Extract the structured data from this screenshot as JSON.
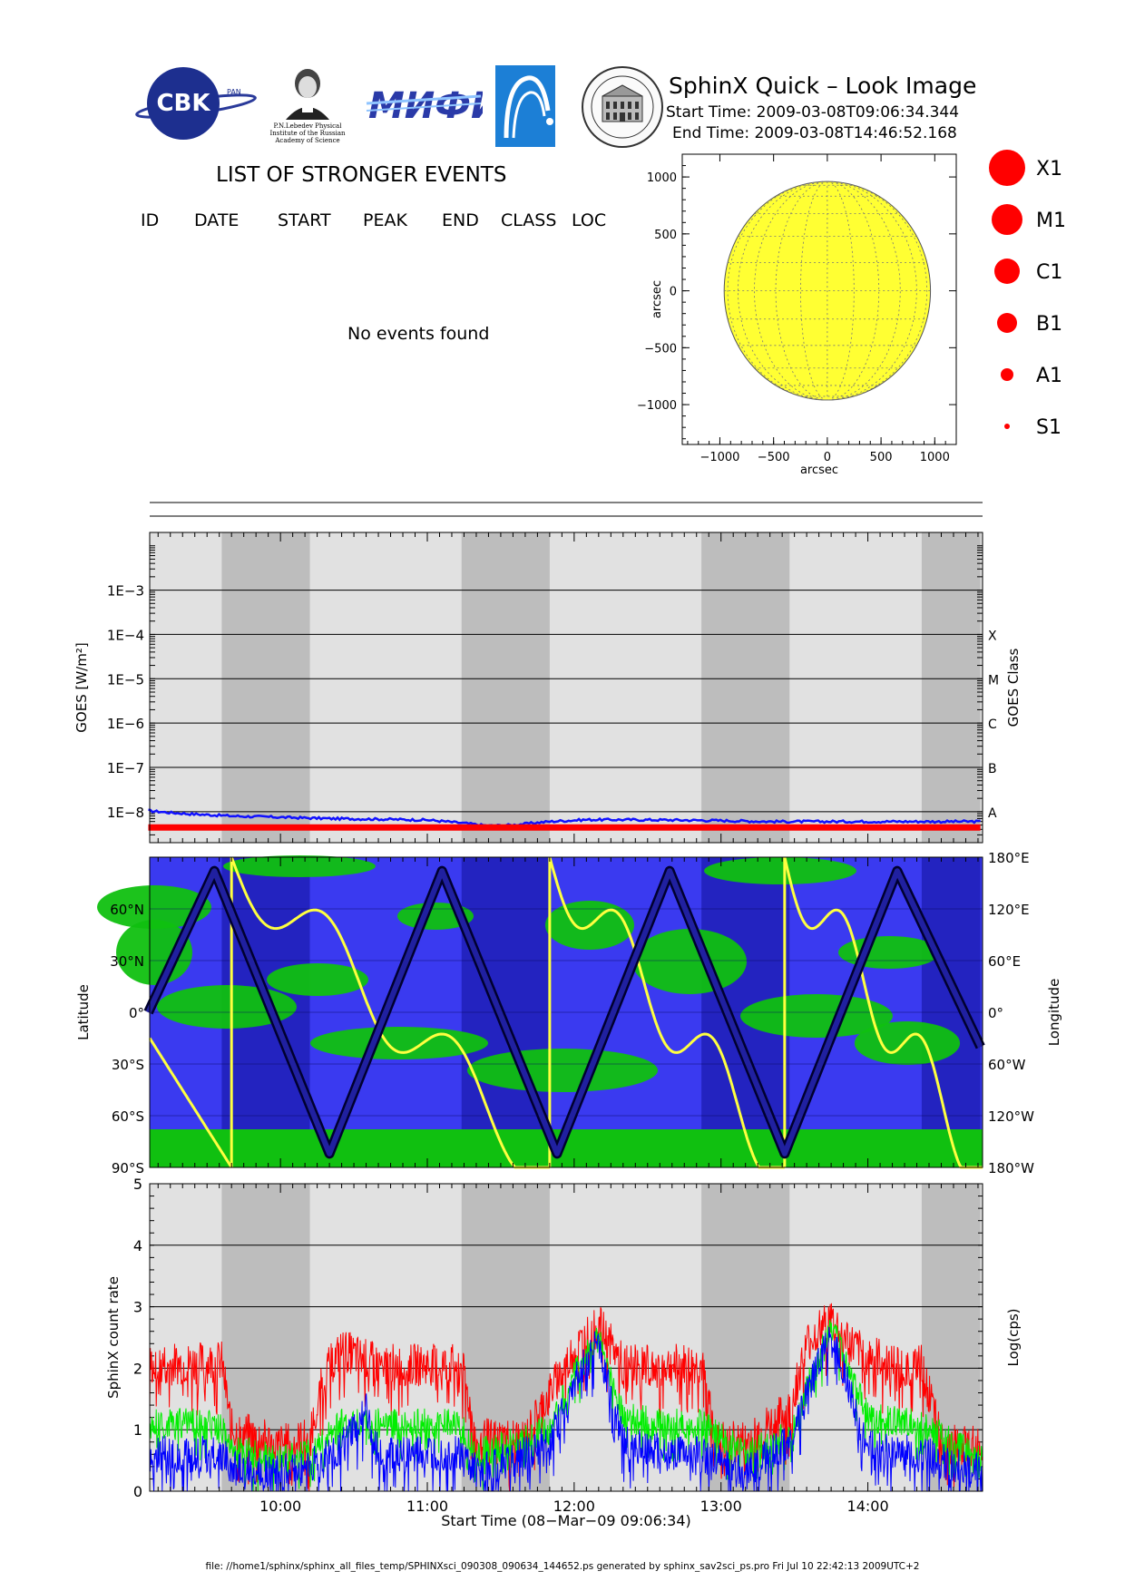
{
  "header": {
    "title": "SphinX Quick – Look Image",
    "start_time": "Start Time: 2009-03-08T09:06:34.344",
    "end_time": "End Time: 2009-03-08T14:46:52.168",
    "logos": {
      "cbk": "CBK",
      "cbk_sub": "PAN",
      "lebedev_caption": [
        "P.N.Lebedev Physical",
        "Institute of the Russian",
        "Academy of Science"
      ],
      "mifi": "МИФИ"
    }
  },
  "events": {
    "title": "LIST OF STRONGER EVENTS",
    "columns": [
      "ID",
      "DATE",
      "START",
      "PEAK",
      "END",
      "CLASS",
      "LOC"
    ],
    "empty_message": "No events found"
  },
  "legend": {
    "items": [
      {
        "label": "X1",
        "color": "#ff0000"
      },
      {
        "label": "M1",
        "color": "#ff0000"
      },
      {
        "label": "C1",
        "color": "#ff0000"
      },
      {
        "label": "B1",
        "color": "#ff0000"
      },
      {
        "label": "A1",
        "color": "#ff0000"
      },
      {
        "label": "S1",
        "color": "#ff0000"
      }
    ]
  },
  "footer": "file: //home1/sphinx/sphinx_all_files_temp/SPHINXsci_090308_090634_144652.ps generated by sphinx_sav2sci_ps.pro Fri Jul 10 22:42:13 2009UTC+2",
  "chart_data": [
    {
      "type": "scatter",
      "name": "solar-disk-map",
      "xlabel": "arcsec",
      "ylabel": "arcsec",
      "xlim": [
        -1350,
        1200
      ],
      "ylim": [
        -1350,
        1200
      ],
      "x_ticks": [
        -1000,
        -500,
        0,
        500,
        1000
      ],
      "y_ticks": [
        -1000,
        -500,
        0,
        500,
        1000
      ],
      "x_tick_labels": [
        "−1000",
        "−500",
        "0",
        "500",
        "1000"
      ],
      "y_tick_labels": [
        "−1000",
        "−500",
        "0",
        "500",
        "1000"
      ],
      "disk_radius": 960,
      "disk_color": "#ffff33",
      "events": []
    },
    {
      "type": "line",
      "name": "goes-flux",
      "ylabel": "GOES [W/m²]",
      "ylabel_right": "GOES Class",
      "y_scale": "log",
      "ylim": [
        2e-09,
        0.02
      ],
      "y_ticks": [
        1e-08,
        1e-07,
        1e-06,
        1e-05,
        0.0001,
        0.001
      ],
      "y_tick_labels": [
        "1E−8",
        "1E−7",
        "1E−6",
        "1E−5",
        "1E−4",
        "1E−3"
      ],
      "class_labels": [
        {
          "label": "A",
          "value": 1e-08
        },
        {
          "label": "B",
          "value": 1e-07
        },
        {
          "label": "C",
          "value": 1e-06
        },
        {
          "label": "M",
          "value": 1e-05
        },
        {
          "label": "X",
          "value": 0.0001
        }
      ],
      "x_start": "09:06:34",
      "x_end": "14:46:52",
      "eclipse_periods": [
        [
          "09:36",
          "10:12"
        ],
        [
          "11:14",
          "11:50"
        ],
        [
          "12:52",
          "13:28"
        ],
        [
          "14:22",
          "14:46"
        ]
      ],
      "series": [
        {
          "name": "",
          "color": "#1010ff",
          "x": [
            "09:06",
            "09:15",
            "09:25",
            "09:40",
            "10:00",
            "10:20",
            "10:40",
            "11:00",
            "11:15",
            "11:25",
            "11:35",
            "11:50",
            "12:05",
            "12:20",
            "12:40",
            "13:00",
            "13:20",
            "13:40",
            "14:00",
            "14:20",
            "14:46"
          ],
          "y": [
            1.05e-08,
            9.5e-09,
            8.8e-09,
            8e-09,
            7.5e-09,
            7e-09,
            6.8e-09,
            6.5e-09,
            5.5e-09,
            4.8e-09,
            5e-09,
            6e-09,
            6.6e-09,
            6.6e-09,
            6.5e-09,
            6.3e-09,
            6e-09,
            6e-09,
            6e-09,
            6e-09,
            6e-09
          ]
        },
        {
          "name": "",
          "color": "#ff0000",
          "x": [
            "09:06",
            "14:46"
          ],
          "y": [
            4.4e-09,
            4.4e-09
          ]
        }
      ]
    },
    {
      "type": "line",
      "name": "orbit-track",
      "ylabel": "Latitude",
      "ylabel_right": "Longitude",
      "ylim": [
        -90,
        90
      ],
      "y_ticks": [
        60,
        30,
        0,
        -30,
        -60,
        -90
      ],
      "y_tick_labels": [
        "60°N",
        "30°N",
        "0°",
        "30°S",
        "60°S",
        "90°S"
      ],
      "y_right_ticks": [
        180,
        120,
        60,
        0,
        -60,
        -120,
        -180
      ],
      "y_right_tick_labels": [
        "180°E",
        "120°E",
        "60°E",
        "0°",
        "60°W",
        "120°W",
        "180°W"
      ],
      "x_start": "09:06:34",
      "x_end": "14:46:52",
      "latitude_track": {
        "x": [
          "09:06",
          "09:33",
          "10:20",
          "11:06",
          "11:53",
          "12:39",
          "13:26",
          "14:12",
          "14:46"
        ],
        "y": [
          0,
          82,
          -82,
          82,
          -82,
          82,
          -82,
          82,
          -20
        ]
      },
      "longitude_wraps": [
        "09:40",
        "11:50",
        "13:26"
      ]
    },
    {
      "type": "line",
      "name": "sphinx-count-rate",
      "ylabel": "SphinX count rate",
      "ylabel_right": "Log(cps)",
      "xlabel": "Start Time (08−Mar−09 09:06:34)",
      "ylim": [
        0,
        5
      ],
      "y_ticks": [
        0,
        1,
        2,
        3,
        4,
        5
      ],
      "x_ticks": [
        "10:00",
        "11:00",
        "12:00",
        "13:00",
        "14:00"
      ],
      "x_start": "09:06:34",
      "x_end": "14:46:52",
      "series": [
        {
          "name": "",
          "color": "#ff0000",
          "x": [
            "09:06",
            "09:36",
            "09:40",
            "10:00",
            "10:12",
            "10:18",
            "10:25",
            "10:40",
            "11:14",
            "11:20",
            "11:40",
            "11:50",
            "12:00",
            "12:10",
            "12:20",
            "12:40",
            "12:52",
            "12:58",
            "13:10",
            "13:28",
            "13:35",
            "13:45",
            "13:55",
            "14:10",
            "14:22",
            "14:30",
            "14:46"
          ],
          "y": [
            2.05,
            2.1,
            1.0,
            0.75,
            0.85,
            1.9,
            2.3,
            2.05,
            2.05,
            0.85,
            0.85,
            1.6,
            2.3,
            2.7,
            2.05,
            2.05,
            2.05,
            0.8,
            0.8,
            1.3,
            2.4,
            2.8,
            2.3,
            2.05,
            2.05,
            0.8,
            0.7
          ]
        },
        {
          "name": "",
          "color": "#00ee00",
          "x": [
            "09:06",
            "09:36",
            "09:40",
            "10:00",
            "10:12",
            "10:25",
            "10:40",
            "11:14",
            "11:20",
            "11:50",
            "12:00",
            "12:10",
            "12:20",
            "12:40",
            "12:52",
            "13:10",
            "13:28",
            "13:45",
            "14:00",
            "14:22",
            "14:46"
          ],
          "y": [
            1.1,
            1.1,
            0.7,
            0.5,
            0.6,
            1.1,
            1.1,
            1.1,
            0.6,
            1.0,
            1.9,
            2.5,
            1.2,
            1.1,
            1.1,
            0.6,
            0.9,
            2.7,
            1.2,
            1.1,
            0.5
          ]
        },
        {
          "name": "",
          "color": "#0000ff",
          "x": [
            "09:06",
            "09:36",
            "09:40",
            "10:00",
            "10:12",
            "10:25",
            "10:35",
            "10:40",
            "11:14",
            "11:20",
            "11:50",
            "12:00",
            "12:10",
            "12:20",
            "12:40",
            "12:52",
            "13:10",
            "13:28",
            "13:45",
            "14:00",
            "14:22",
            "14:46"
          ],
          "y": [
            0.6,
            0.6,
            0.4,
            0.3,
            0.4,
            0.7,
            1.3,
            0.6,
            0.6,
            0.3,
            0.8,
            1.8,
            2.4,
            0.8,
            0.6,
            0.6,
            0.3,
            0.8,
            2.6,
            0.7,
            0.6,
            0.3
          ]
        }
      ]
    }
  ]
}
